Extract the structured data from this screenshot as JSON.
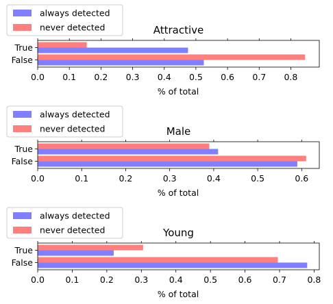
{
  "colors": {
    "always_detected": "#7f7fff",
    "never_detected": "#ff7f7f"
  },
  "chart_data": [
    {
      "type": "bar",
      "orientation": "horizontal",
      "title": "Attractive",
      "xlabel": "% of total",
      "ylabel": "",
      "categories": [
        "True",
        "False"
      ],
      "series": [
        {
          "name": "always detected",
          "values": [
            0.475,
            0.525
          ]
        },
        {
          "name": "never detected",
          "values": [
            0.155,
            0.845
          ]
        }
      ],
      "xlim": [
        0,
        0.89
      ],
      "xticks": [
        "0.0",
        "0.1",
        "0.2",
        "0.3",
        "0.4",
        "0.5",
        "0.6",
        "0.7",
        "0.8"
      ],
      "xtick_values": [
        0.0,
        0.1,
        0.2,
        0.3,
        0.4,
        0.5,
        0.6,
        0.7,
        0.8
      ],
      "legend": {
        "position": "upper-left-outside",
        "entries": [
          "always detected",
          "never detected"
        ]
      }
    },
    {
      "type": "bar",
      "orientation": "horizontal",
      "title": "Male",
      "xlabel": "% of total",
      "ylabel": "",
      "categories": [
        "True",
        "False"
      ],
      "series": [
        {
          "name": "always detected",
          "values": [
            0.41,
            0.59
          ]
        },
        {
          "name": "never detected",
          "values": [
            0.39,
            0.61
          ]
        }
      ],
      "xlim": [
        0,
        0.64
      ],
      "xticks": [
        "0.0",
        "0.1",
        "0.2",
        "0.3",
        "0.4",
        "0.5",
        "0.6"
      ],
      "xtick_values": [
        0.0,
        0.1,
        0.2,
        0.3,
        0.4,
        0.5,
        0.6
      ],
      "legend": {
        "position": "upper-left-outside",
        "entries": [
          "always detected",
          "never detected"
        ]
      }
    },
    {
      "type": "bar",
      "orientation": "horizontal",
      "title": "Young",
      "xlabel": "% of total",
      "ylabel": "",
      "categories": [
        "True",
        "False"
      ],
      "series": [
        {
          "name": "always detected",
          "values": [
            0.22,
            0.78
          ]
        },
        {
          "name": "never detected",
          "values": [
            0.305,
            0.695
          ]
        }
      ],
      "xlim": [
        0,
        0.815
      ],
      "xticks": [
        "0.0",
        "0.1",
        "0.2",
        "0.3",
        "0.4",
        "0.5",
        "0.6",
        "0.7",
        "0.8"
      ],
      "xtick_values": [
        0.0,
        0.1,
        0.2,
        0.3,
        0.4,
        0.5,
        0.6,
        0.7,
        0.8
      ],
      "legend": {
        "position": "upper-left-outside",
        "entries": [
          "always detected",
          "never detected"
        ]
      }
    }
  ]
}
